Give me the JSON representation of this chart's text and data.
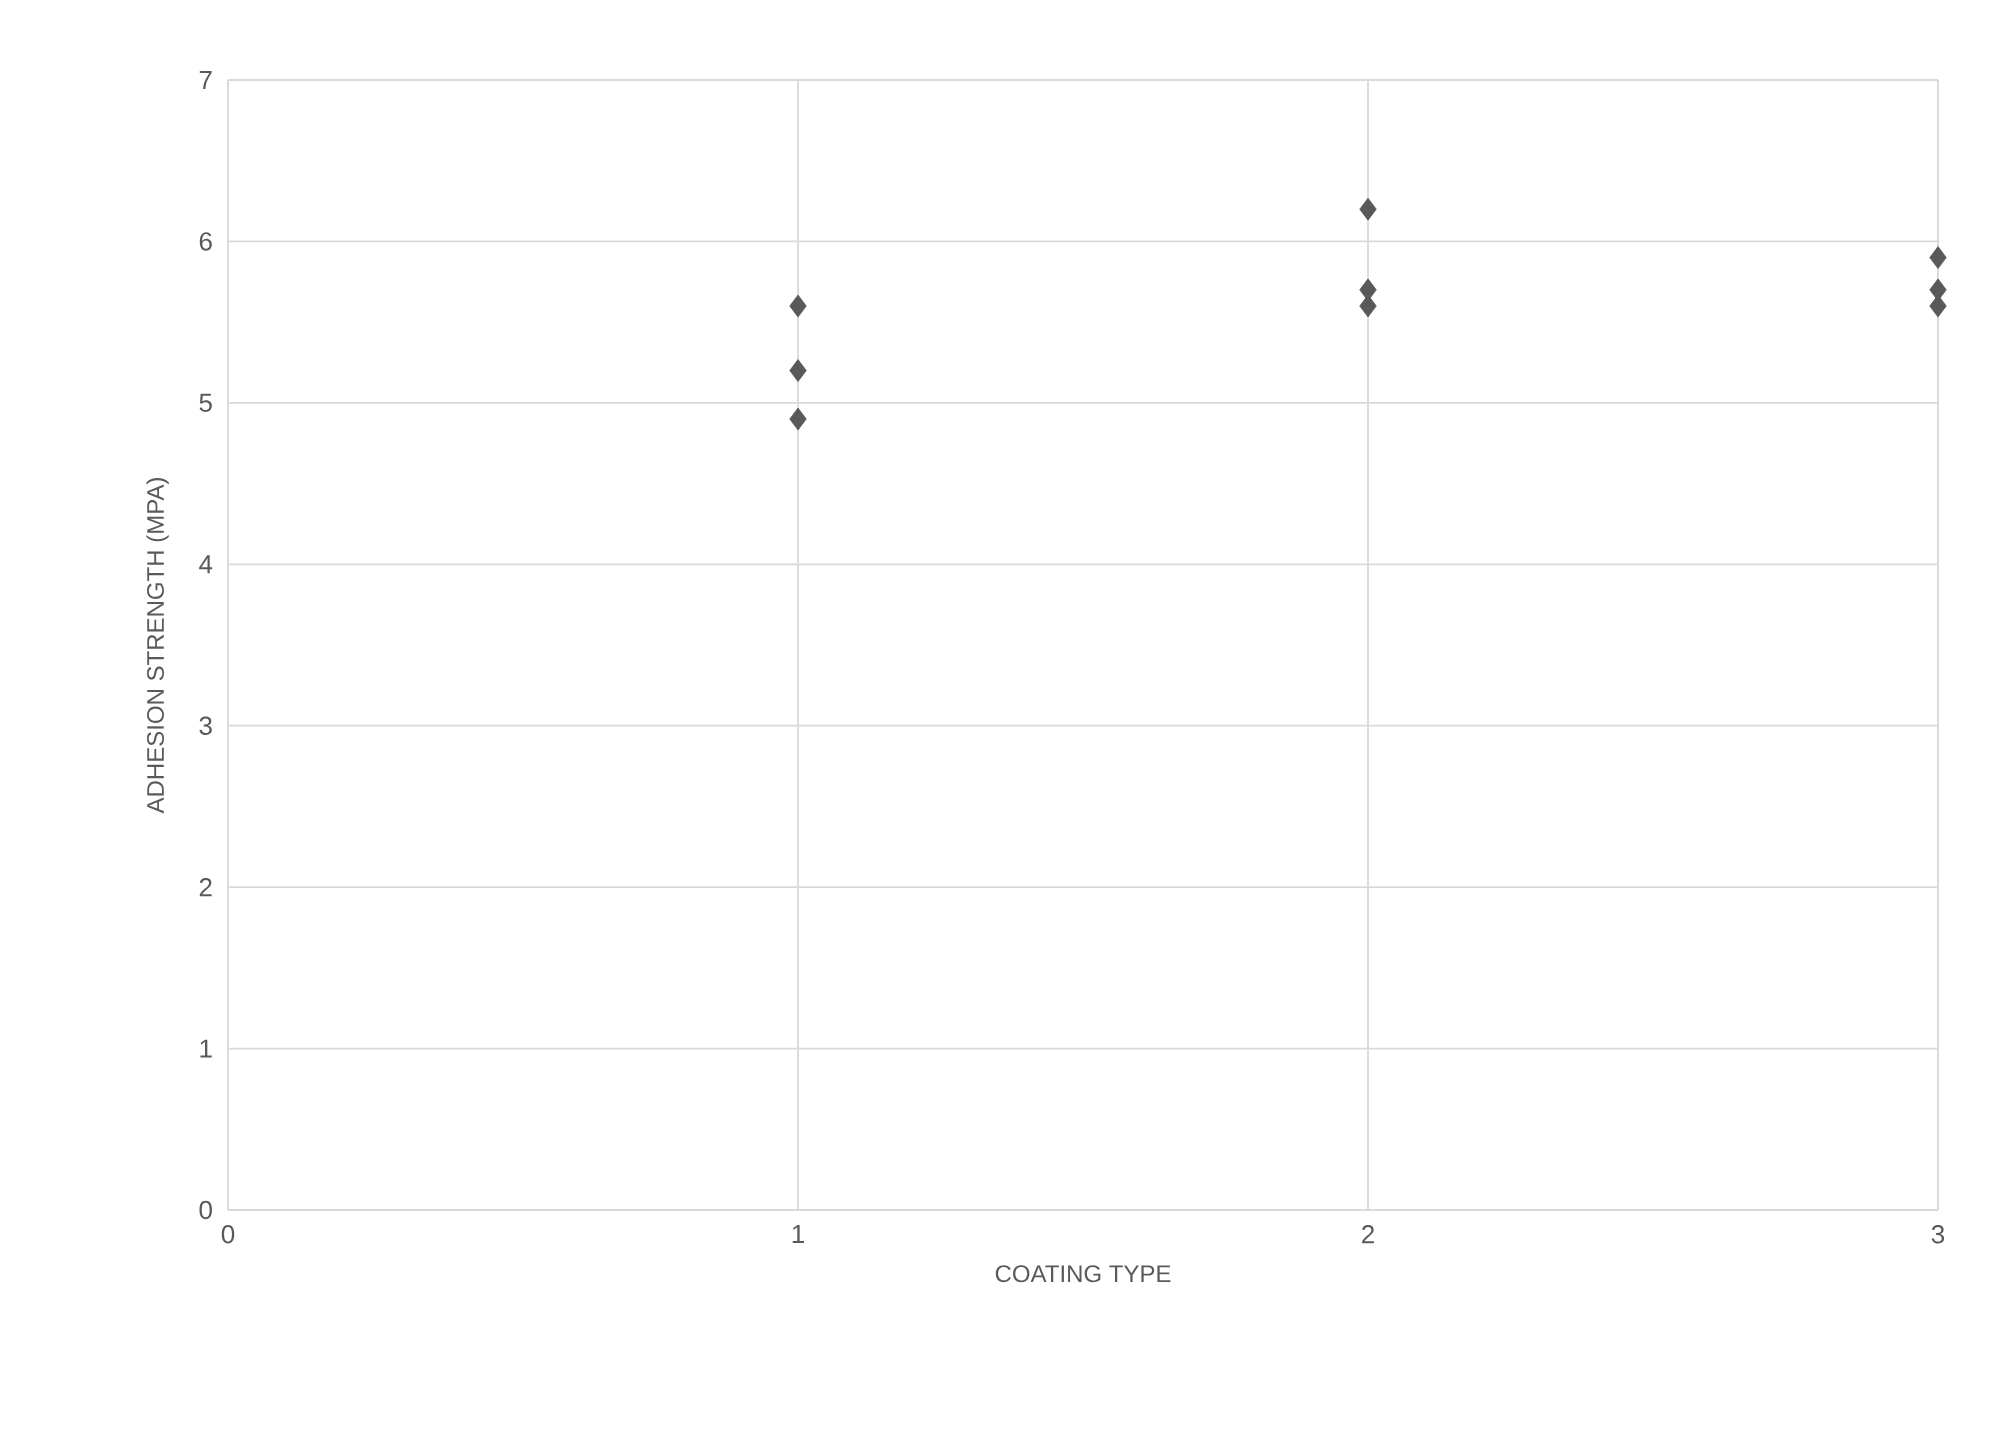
{
  "chart_data": {
    "type": "scatter",
    "xlabel": "COATING TYPE",
    "ylabel": "ADHESION STRENGTH (MPA)",
    "series": [
      {
        "color": "#595959",
        "x": [
          1,
          1,
          1,
          2,
          2,
          2,
          3,
          3,
          3
        ],
        "values": [
          5.6,
          5.2,
          4.9,
          6.2,
          5.7,
          5.6,
          5.9,
          5.7,
          5.6
        ]
      }
    ],
    "xlim": [
      0,
      3
    ],
    "ylim": [
      0,
      7
    ],
    "xticks": [
      0,
      1,
      2,
      3
    ],
    "yticks": [
      0,
      1,
      2,
      3,
      4,
      5,
      6,
      7
    ],
    "grid": true,
    "marker": "diamond"
  }
}
